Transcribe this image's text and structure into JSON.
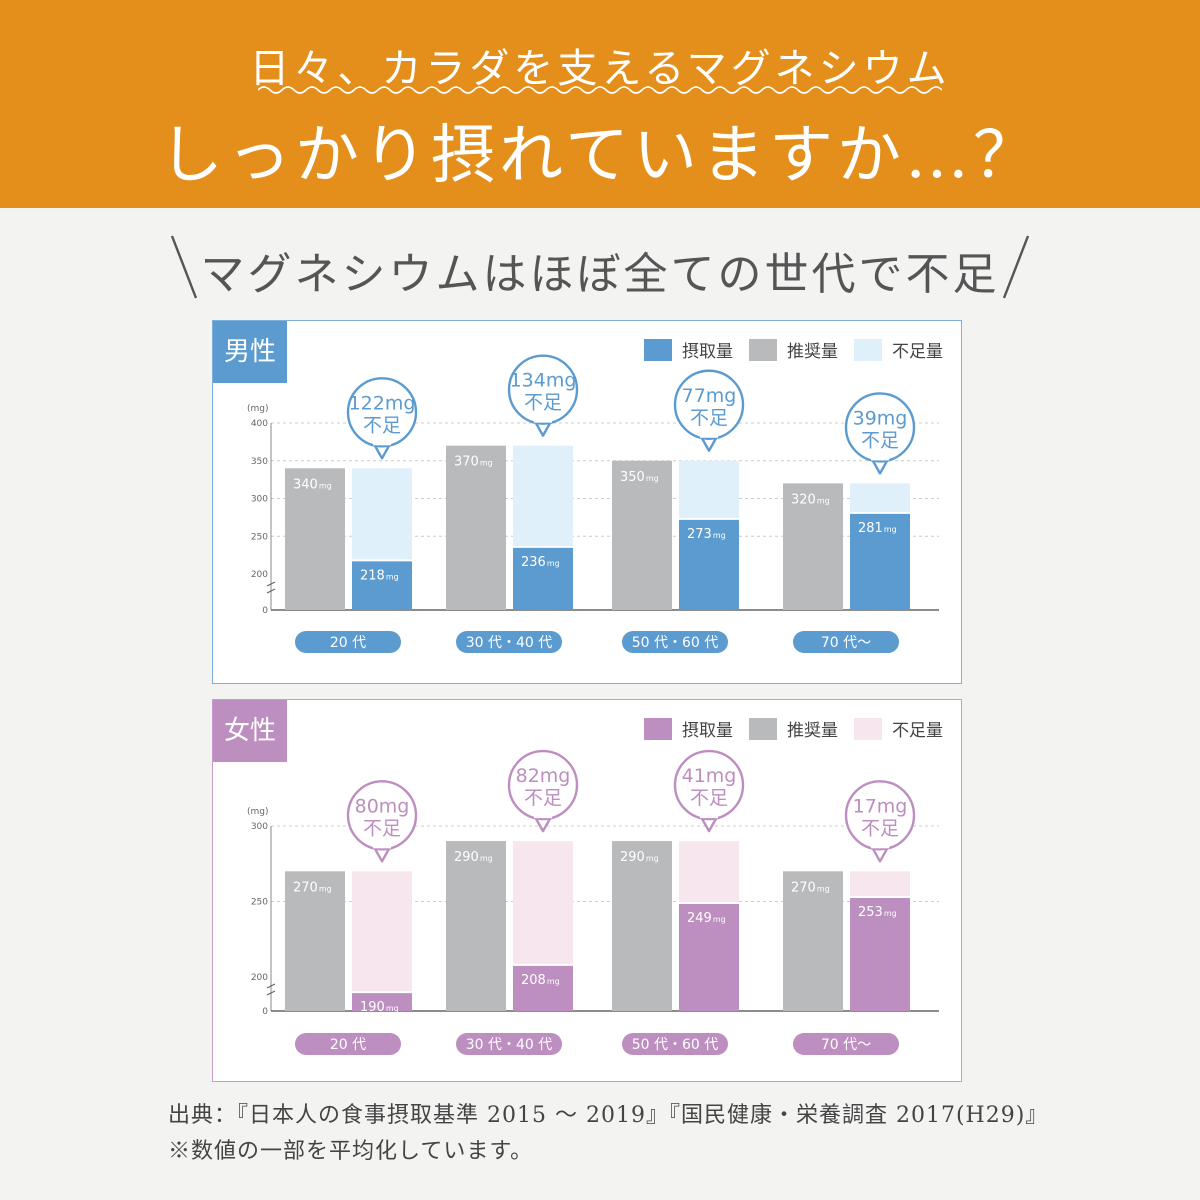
{
  "header": {
    "subtitle": "日々、カラダを支えるマグネシウム",
    "title": "しっかり摂れていますか…？"
  },
  "subheading": "マグネシウムはほぼ全ての世代で不足",
  "colors": {
    "orange": "#e48f1c",
    "male_intake": "#5b9bd0",
    "male_shortage": "#dff0fa",
    "female_intake": "#bd8ec0",
    "female_shortage": "#f8e6ef",
    "recommended": "#b9babb"
  },
  "legend": {
    "intake": "摂取量",
    "recommended": "推奨量",
    "shortage": "不足量"
  },
  "chart_data": [
    {
      "type": "bar",
      "title": "男性",
      "ylabel": "(mg)",
      "ylim": [
        0,
        400
      ],
      "yticks": [
        "400",
        "350",
        "300",
        "250",
        "200",
        "0"
      ],
      "categories": [
        "20 代",
        "30 代・40 代",
        "50 代・60 代",
        "70 代〜"
      ],
      "series": [
        {
          "name": "推奨量",
          "values": [
            340,
            370,
            350,
            320
          ],
          "labels": [
            "340",
            "370",
            "350",
            "320"
          ]
        },
        {
          "name": "摂取量",
          "values": [
            218,
            236,
            273,
            281
          ],
          "labels": [
            "218",
            "236",
            "273",
            "281"
          ]
        },
        {
          "name": "不足量",
          "values": [
            122,
            134,
            77,
            39
          ],
          "labels": [
            "122mg",
            "134mg",
            "77mg",
            "39mg"
          ]
        }
      ],
      "unit": "mg",
      "shortage_word": "不足"
    },
    {
      "type": "bar",
      "title": "女性",
      "ylabel": "(mg)",
      "ylim": [
        0,
        300
      ],
      "yticks": [
        "300",
        "250",
        "200",
        "0"
      ],
      "categories": [
        "20 代",
        "30 代・40 代",
        "50 代・60 代",
        "70 代〜"
      ],
      "series": [
        {
          "name": "推奨量",
          "values": [
            270,
            290,
            290,
            270
          ],
          "labels": [
            "270",
            "290",
            "290",
            "270"
          ]
        },
        {
          "name": "摂取量",
          "values": [
            190,
            208,
            249,
            253
          ],
          "labels": [
            "190",
            "208",
            "249",
            "253"
          ]
        },
        {
          "name": "不足量",
          "values": [
            80,
            82,
            41,
            17
          ],
          "labels": [
            "80mg",
            "82mg",
            "41mg",
            "17mg"
          ]
        }
      ],
      "unit": "mg",
      "shortage_word": "不足"
    }
  ],
  "source": {
    "line1": "出典：『日本人の食事摂取基準 2015 ～ 2019』『国民健康・栄養調査 2017(H29)』",
    "line2": "※数値の一部を平均化しています。"
  }
}
